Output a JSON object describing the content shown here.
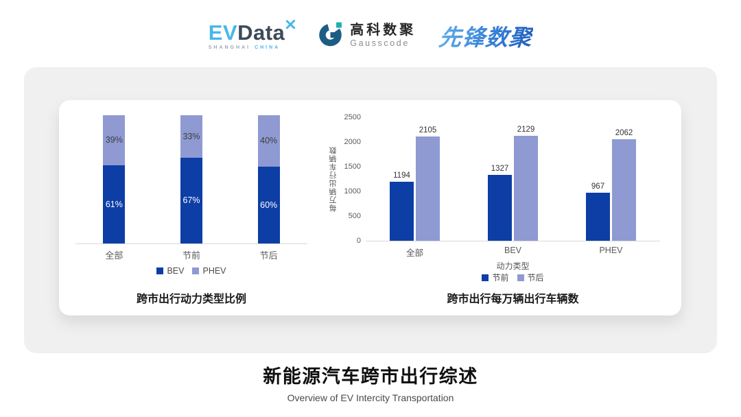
{
  "header": {
    "evdata": {
      "ev": "EV",
      "data": "Data",
      "sub_left": "SHANGHAI",
      "sub_right": "CHINA"
    },
    "gausscode": {
      "cn": "高科数聚",
      "en": "Gausscode"
    },
    "pioneer": {
      "text": "先锋数聚"
    }
  },
  "colors": {
    "bev": "#0d3ea6",
    "phev": "#8f9ad2",
    "axis": "#d9d9d9",
    "evdata_blue": "#49b7e9",
    "evdata_dark": "#3d4a59",
    "gauss_blue": "#1d5c85",
    "gauss_teal": "#21b1b4"
  },
  "chart_data": [
    {
      "type": "bar",
      "subtype": "stacked_percent",
      "title": "跨市出行动力类型比例",
      "categories": [
        "全部",
        "节前",
        "节后"
      ],
      "series": [
        {
          "name": "BEV",
          "values": [
            61,
            67,
            60
          ],
          "color": "#0d3ea6",
          "label_color": "#ffffff"
        },
        {
          "name": "PHEV",
          "values": [
            39,
            33,
            40
          ],
          "color": "#8f9ad2",
          "label_color": "#3d3d3d"
        }
      ],
      "value_suffix": "%",
      "stack_order_bottom_to_top": [
        "BEV",
        "PHEV"
      ],
      "legend_position": "bottom",
      "grid": false
    },
    {
      "type": "bar",
      "subtype": "grouped",
      "title": "跨市出行每万辆出行车辆数",
      "categories": [
        "全部",
        "BEV",
        "PHEV"
      ],
      "xlabel": "动力类型",
      "ylabel": "每万辆出行车辆数",
      "ylim": [
        0,
        2500
      ],
      "yticks": [
        0,
        500,
        1000,
        1500,
        2000,
        2500
      ],
      "series": [
        {
          "name": "节前",
          "values": [
            1194,
            1327,
            967
          ],
          "color": "#0d3ea6"
        },
        {
          "name": "节后",
          "values": [
            2105,
            2129,
            2062
          ],
          "color": "#8f9ad2"
        }
      ],
      "legend_position": "bottom",
      "grid": false
    }
  ],
  "footer": {
    "title": "新能源汽车跨市出行综述",
    "subtitle": "Overview of EV Intercity Transportation"
  }
}
